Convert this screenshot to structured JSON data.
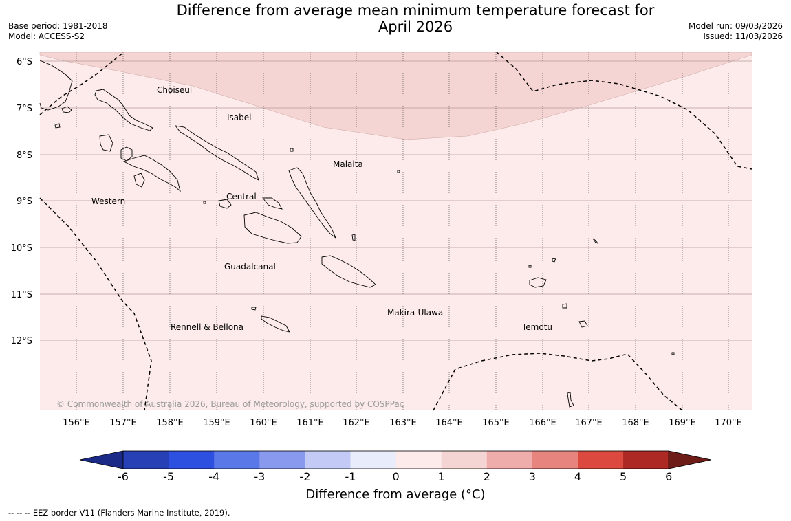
{
  "title_line1": "Difference from average mean minimum temperature forecast for",
  "title_line2": "April 2026",
  "meta_left": {
    "base_period": "Base period: 1981-2018",
    "model": "Model: ACCESS-S2"
  },
  "meta_right": {
    "model_run": "Model run: 09/03/2026",
    "issued": "Issued: 11/03/2026"
  },
  "latitude_labels": [
    "6°S",
    "7°S",
    "8°S",
    "9°S",
    "10°S",
    "11°S",
    "12°S"
  ],
  "longitude_labels": [
    "156°E",
    "157°E",
    "158°E",
    "159°E",
    "160°E",
    "161°E",
    "162°E",
    "163°E",
    "164°E",
    "165°E",
    "166°E",
    "167°E",
    "168°E",
    "169°E",
    "170°E"
  ],
  "province_labels": {
    "choiseul": "Choiseul",
    "isabel": "Isabel",
    "malaita": "Malaita",
    "western": "Western",
    "central": "Central",
    "guadalcanal": "Guadalcanal",
    "makira": "Makira-Ulawa",
    "rennell": "Rennell & Bellona",
    "temotu": "Temotu"
  },
  "copyright": "© Commonwealth of Australia 2026, Bureau of Meteorology, supported by COSPPac",
  "colorbar": {
    "title": "Difference from average (°C)",
    "tick_labels": [
      "-6",
      "-5",
      "-4",
      "-3",
      "-2",
      "-1",
      "0",
      "1",
      "2",
      "3",
      "4",
      "5",
      "6"
    ],
    "colors": [
      "#1b2a86",
      "#2740b6",
      "#2e50e0",
      "#5a78e8",
      "#8899ee",
      "#c2caf5",
      "#e9ecfb",
      "#fcebea",
      "#f5d5d3",
      "#eeadaa",
      "#e6847d",
      "#dc4a3f",
      "#ad2a24",
      "#6e1c18"
    ]
  },
  "footer": "--  --  -- EEZ border V11 (Flanders Marine Institute, 2019)."
}
